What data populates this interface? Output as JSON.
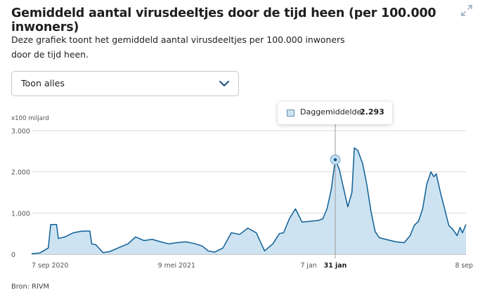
{
  "header": {
    "title": "Gemiddeld aantal virusdeeltjes door de tijd heen (per 100.000 inwoners)",
    "description": "Deze grafiek toont het gemiddeld aantal virusdeeltjes per 100.000 inwoners door de tijd heen.",
    "expand_icon": "expand-icon"
  },
  "filter": {
    "selected": "Toon alles",
    "icon": "chevron-down-icon"
  },
  "tooltip": {
    "label": "Daggemiddelde:",
    "value": "2.293"
  },
  "source": "Bron: RIVM",
  "colors": {
    "line": "#0e5f96",
    "area": "#cde3f1",
    "grid": "#d9d9d9",
    "axis": "#555555",
    "marker": "#0e5f96"
  },
  "chart_data": {
    "type": "area",
    "ylabel_unit": "x100 miljard",
    "ylim": [
      0,
      3000
    ],
    "y_ticks": [
      "0",
      "1.000",
      "2.000",
      "3.000"
    ],
    "y_tick_values": [
      0,
      1000,
      2000,
      3000
    ],
    "x_tick_labels": [
      {
        "label": "7 sep 2020",
        "date": "2020-09-07",
        "bold": false
      },
      {
        "label": "9 mei 2021",
        "date": "2021-05-09",
        "bold": false
      },
      {
        "label": "7 jan",
        "date": "2022-01-07",
        "bold": false
      },
      {
        "label": "31 jan",
        "date": "2022-01-31",
        "bold": true
      },
      {
        "label": "8 sep",
        "date": "2022-09-08",
        "bold": false
      }
    ],
    "xlim": [
      "2020-09-07",
      "2022-09-08"
    ],
    "highlight": {
      "date": "2022-01-31",
      "value": 2293
    },
    "grid": true,
    "series": [
      {
        "points": [
          [
            "2020-09-07",
            10
          ],
          [
            "2020-09-21",
            30
          ],
          [
            "2020-10-05",
            150
          ],
          [
            "2020-10-09",
            720
          ],
          [
            "2020-10-19",
            720
          ],
          [
            "2020-10-22",
            380
          ],
          [
            "2020-11-02",
            420
          ],
          [
            "2020-11-16",
            520
          ],
          [
            "2020-12-01",
            560
          ],
          [
            "2020-12-14",
            560
          ],
          [
            "2020-12-17",
            250
          ],
          [
            "2020-12-24",
            230
          ],
          [
            "2021-01-05",
            40
          ],
          [
            "2021-01-16",
            60
          ],
          [
            "2021-02-01",
            160
          ],
          [
            "2021-02-16",
            250
          ],
          [
            "2021-03-01",
            420
          ],
          [
            "2021-03-15",
            330
          ],
          [
            "2021-03-29",
            360
          ],
          [
            "2021-04-12",
            300
          ],
          [
            "2021-04-26",
            250
          ],
          [
            "2021-05-09",
            280
          ],
          [
            "2021-05-24",
            300
          ],
          [
            "2021-06-07",
            260
          ],
          [
            "2021-06-21",
            200
          ],
          [
            "2021-07-01",
            80
          ],
          [
            "2021-07-12",
            50
          ],
          [
            "2021-07-26",
            150
          ],
          [
            "2021-08-09",
            520
          ],
          [
            "2021-08-23",
            480
          ],
          [
            "2021-09-06",
            630
          ],
          [
            "2021-09-20",
            520
          ],
          [
            "2021-10-04",
            80
          ],
          [
            "2021-10-18",
            250
          ],
          [
            "2021-10-29",
            500
          ],
          [
            "2021-11-05",
            520
          ],
          [
            "2021-11-15",
            870
          ],
          [
            "2021-11-25",
            1100
          ],
          [
            "2021-12-06",
            780
          ],
          [
            "2021-12-20",
            800
          ],
          [
            "2022-01-03",
            820
          ],
          [
            "2022-01-10",
            860
          ],
          [
            "2022-01-17",
            1100
          ],
          [
            "2022-01-24",
            1550
          ],
          [
            "2022-01-31",
            2293
          ],
          [
            "2022-02-07",
            2050
          ],
          [
            "2022-02-14",
            1600
          ],
          [
            "2022-02-21",
            1150
          ],
          [
            "2022-02-28",
            1500
          ],
          [
            "2022-03-04",
            2580
          ],
          [
            "2022-03-10",
            2520
          ],
          [
            "2022-03-18",
            2200
          ],
          [
            "2022-03-25",
            1700
          ],
          [
            "2022-04-01",
            1050
          ],
          [
            "2022-04-08",
            550
          ],
          [
            "2022-04-15",
            400
          ],
          [
            "2022-04-29",
            350
          ],
          [
            "2022-05-13",
            300
          ],
          [
            "2022-05-27",
            280
          ],
          [
            "2022-06-06",
            450
          ],
          [
            "2022-06-13",
            700
          ],
          [
            "2022-06-20",
            800
          ],
          [
            "2022-06-27",
            1100
          ],
          [
            "2022-07-04",
            1700
          ],
          [
            "2022-07-11",
            2000
          ],
          [
            "2022-07-16",
            1880
          ],
          [
            "2022-07-20",
            1950
          ],
          [
            "2022-07-27",
            1500
          ],
          [
            "2022-08-03",
            1100
          ],
          [
            "2022-08-10",
            700
          ],
          [
            "2022-08-17",
            600
          ],
          [
            "2022-08-24",
            450
          ],
          [
            "2022-08-29",
            650
          ],
          [
            "2022-09-02",
            520
          ],
          [
            "2022-09-08",
            720
          ]
        ]
      }
    ]
  }
}
